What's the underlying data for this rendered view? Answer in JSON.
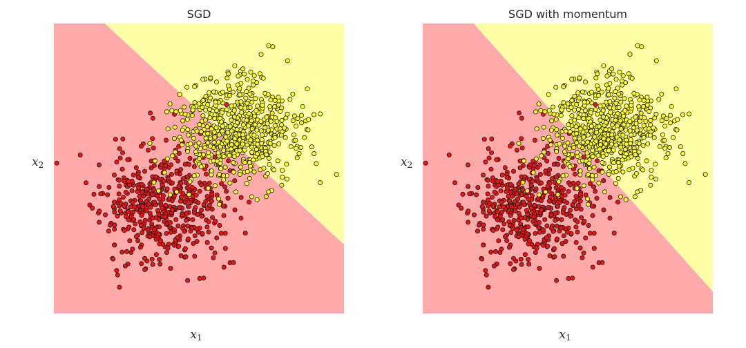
{
  "chart_data": [
    {
      "type": "scatter",
      "title": "SGD",
      "xlabel": "x",
      "xlabel_sub": "1",
      "ylabel": "x",
      "ylabel_sub": "2",
      "xlim": [
        -4,
        4
      ],
      "ylim": [
        -4,
        4
      ],
      "grid": false,
      "legend": "none",
      "decision_boundary": {
        "x1": -2.6,
        "y1": 4.0,
        "x2": 4.0,
        "y2": -2.1
      },
      "regions": [
        {
          "name": "class-0-region",
          "color": "#ffaaaa"
        },
        {
          "name": "class-1-region",
          "color": "#ffffa8"
        }
      ],
      "series": [
        {
          "class": 0,
          "color": "#ee1111",
          "center": [
            -1.0,
            -1.0
          ],
          "spread": [
            0.85,
            0.8
          ],
          "n": 520,
          "seed": 11
        },
        {
          "class": 1,
          "color": "#ffff22",
          "center": [
            1.0,
            1.0
          ],
          "spread": [
            0.82,
            0.72
          ],
          "n": 600,
          "seed": 23
        }
      ]
    },
    {
      "type": "scatter",
      "title": "SGD with momentum",
      "xlabel": "x",
      "xlabel_sub": "1",
      "ylabel": "x",
      "ylabel_sub": "2",
      "xlim": [
        -4,
        4
      ],
      "ylim": [
        -4,
        4
      ],
      "grid": false,
      "legend": "none",
      "decision_boundary": {
        "x1": -2.6,
        "y1": 4.0,
        "x2": 4.0,
        "y2": -3.4
      },
      "regions": [
        {
          "name": "class-0-region",
          "color": "#ffaaaa"
        },
        {
          "name": "class-1-region",
          "color": "#ffffa8"
        }
      ],
      "series": [
        {
          "class": 0,
          "color": "#ee1111",
          "center": [
            -1.0,
            -1.0
          ],
          "spread": [
            0.85,
            0.8
          ],
          "n": 520,
          "seed": 11
        },
        {
          "class": 1,
          "color": "#ffff22",
          "center": [
            1.0,
            1.0
          ],
          "spread": [
            0.82,
            0.72
          ],
          "n": 600,
          "seed": 23
        }
      ]
    }
  ]
}
